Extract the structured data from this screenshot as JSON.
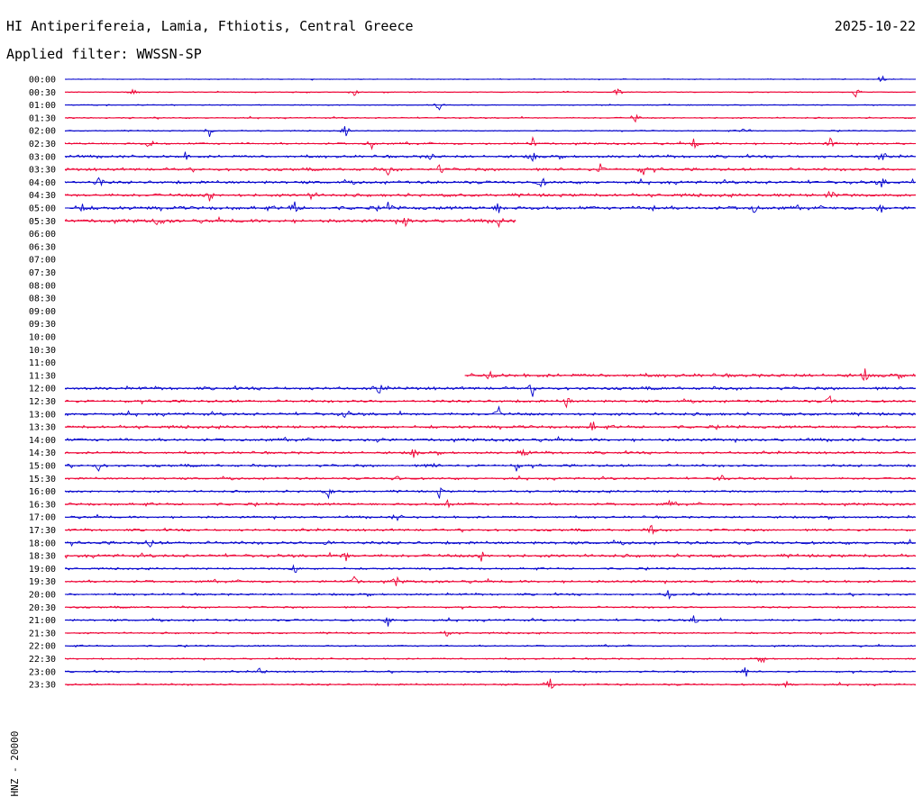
{
  "header": {
    "station": "HI Antiperifereia, Lamia, Fthiotis, Central Greece",
    "date": "2025-10-22",
    "filter": "Applied filter: WWSSN-SP",
    "channel_label": "HNZ - 20000"
  },
  "colors": {
    "blue_trace": "#0000cc",
    "red_trace": "#ee0033",
    "background": "#ffffff"
  },
  "chart_data": {
    "type": "line",
    "title": "HI Antiperifereia, Lamia, Fthiotis, Central Greece",
    "ylabel": "HNZ - 20000",
    "row_labels": [
      "00:00",
      "00:30",
      "01:00",
      "01:30",
      "02:00",
      "02:30",
      "03:00",
      "03:30",
      "04:00",
      "04:30",
      "05:00",
      "05:30",
      "06:00",
      "06:30",
      "07:00",
      "07:30",
      "08:00",
      "08:30",
      "09:00",
      "09:30",
      "10:00",
      "10:30",
      "11:00",
      "11:30",
      "12:00",
      "12:30",
      "13:00",
      "13:30",
      "14:00",
      "14:30",
      "15:00",
      "15:30",
      "16:00",
      "16:30",
      "17:00",
      "17:30",
      "18:00",
      "18:30",
      "19:00",
      "19:30",
      "20:00",
      "20:30",
      "21:00",
      "21:30",
      "22:00",
      "22:30",
      "23:00",
      "23:30"
    ],
    "row_minutes": 30,
    "color_cycle": [
      "blue",
      "red"
    ],
    "traces": [
      {
        "row": "00:00",
        "start": 0.0,
        "end": 1.0,
        "noise": 0.4,
        "events": [
          0.96
        ]
      },
      {
        "row": "00:30",
        "start": 0.0,
        "end": 1.0,
        "noise": 0.5,
        "events": [
          0.08,
          0.34,
          0.65,
          0.93
        ]
      },
      {
        "row": "01:00",
        "start": 0.0,
        "end": 1.0,
        "noise": 0.5,
        "events": [
          0.44
        ]
      },
      {
        "row": "01:30",
        "start": 0.0,
        "end": 1.0,
        "noise": 0.7,
        "events": [
          0.67
        ]
      },
      {
        "row": "02:00",
        "start": 0.0,
        "end": 1.0,
        "noise": 0.6,
        "events": [
          0.17,
          0.33,
          0.8
        ]
      },
      {
        "row": "02:30",
        "start": 0.0,
        "end": 1.0,
        "noise": 1.0,
        "events": [
          0.1,
          0.36,
          0.55,
          0.74,
          0.9
        ]
      },
      {
        "row": "03:00",
        "start": 0.0,
        "end": 1.0,
        "noise": 1.4,
        "events": [
          0.14,
          0.43,
          0.55,
          0.96
        ]
      },
      {
        "row": "03:30",
        "start": 0.0,
        "end": 1.0,
        "noise": 1.5,
        "events": [
          0.38,
          0.44,
          0.63,
          0.68
        ]
      },
      {
        "row": "04:00",
        "start": 0.0,
        "end": 1.0,
        "noise": 1.6,
        "events": [
          0.04,
          0.56,
          0.96
        ]
      },
      {
        "row": "04:30",
        "start": 0.0,
        "end": 1.0,
        "noise": 1.6,
        "events": [
          0.17,
          0.29,
          0.9
        ]
      },
      {
        "row": "05:00",
        "start": 0.0,
        "end": 1.0,
        "noise": 1.8,
        "events": [
          0.02,
          0.27,
          0.38,
          0.51,
          0.69,
          0.81,
          0.96
        ]
      },
      {
        "row": "05:30",
        "start": 0.0,
        "end": 0.53,
        "noise": 1.8,
        "events": [
          0.11,
          0.4,
          0.51
        ]
      },
      {
        "row": "11:30",
        "start": 0.47,
        "end": 1.0,
        "noise": 1.8,
        "events": [
          0.5,
          0.94
        ]
      },
      {
        "row": "12:00",
        "start": 0.0,
        "end": 1.0,
        "noise": 1.6,
        "events": [
          0.37,
          0.55
        ]
      },
      {
        "row": "12:30",
        "start": 0.0,
        "end": 1.0,
        "noise": 1.4,
        "events": [
          0.59,
          0.9
        ]
      },
      {
        "row": "13:00",
        "start": 0.0,
        "end": 1.0,
        "noise": 1.5,
        "events": [
          0.33,
          0.51
        ]
      },
      {
        "row": "13:30",
        "start": 0.0,
        "end": 1.0,
        "noise": 1.5,
        "events": [
          0.62
        ]
      },
      {
        "row": "14:00",
        "start": 0.0,
        "end": 1.0,
        "noise": 1.5,
        "events": [
          0.37
        ]
      },
      {
        "row": "14:30",
        "start": 0.0,
        "end": 1.0,
        "noise": 1.3,
        "events": [
          0.41,
          0.54
        ]
      },
      {
        "row": "15:00",
        "start": 0.0,
        "end": 1.0,
        "noise": 1.3,
        "events": [
          0.04,
          0.43,
          0.53
        ]
      },
      {
        "row": "15:30",
        "start": 0.0,
        "end": 1.0,
        "noise": 1.2,
        "events": [
          0.39,
          0.77
        ]
      },
      {
        "row": "16:00",
        "start": 0.0,
        "end": 1.0,
        "noise": 1.1,
        "events": [
          0.31,
          0.44
        ]
      },
      {
        "row": "16:30",
        "start": 0.0,
        "end": 1.0,
        "noise": 1.3,
        "events": [
          0.45,
          0.71
        ]
      },
      {
        "row": "17:00",
        "start": 0.0,
        "end": 1.0,
        "noise": 1.2,
        "events": [
          0.39
        ]
      },
      {
        "row": "17:30",
        "start": 0.0,
        "end": 1.0,
        "noise": 1.2,
        "events": [
          0.69
        ]
      },
      {
        "row": "18:00",
        "start": 0.0,
        "end": 1.0,
        "noise": 1.6,
        "events": [
          0.1,
          0.31
        ]
      },
      {
        "row": "18:30",
        "start": 0.0,
        "end": 1.0,
        "noise": 1.6,
        "events": [
          0.33,
          0.49
        ]
      },
      {
        "row": "19:00",
        "start": 0.0,
        "end": 1.0,
        "noise": 1.0,
        "events": [
          0.27
        ]
      },
      {
        "row": "19:30",
        "start": 0.0,
        "end": 1.0,
        "noise": 1.3,
        "events": [
          0.34,
          0.39
        ]
      },
      {
        "row": "20:00",
        "start": 0.0,
        "end": 1.0,
        "noise": 1.1,
        "events": [
          0.71
        ]
      },
      {
        "row": "20:30",
        "start": 0.0,
        "end": 1.0,
        "noise": 1.0,
        "events": []
      },
      {
        "row": "21:00",
        "start": 0.0,
        "end": 1.0,
        "noise": 1.1,
        "events": [
          0.38,
          0.74
        ]
      },
      {
        "row": "21:30",
        "start": 0.0,
        "end": 1.0,
        "noise": 0.9,
        "events": [
          0.45
        ]
      },
      {
        "row": "22:00",
        "start": 0.0,
        "end": 1.0,
        "noise": 0.8,
        "events": []
      },
      {
        "row": "22:30",
        "start": 0.0,
        "end": 1.0,
        "noise": 0.8,
        "events": [
          0.82
        ]
      },
      {
        "row": "23:00",
        "start": 0.0,
        "end": 1.0,
        "noise": 0.9,
        "events": [
          0.23,
          0.8
        ]
      },
      {
        "row": "23:30",
        "start": 0.0,
        "end": 1.0,
        "noise": 1.0,
        "events": [
          0.57,
          0.85
        ]
      }
    ]
  }
}
